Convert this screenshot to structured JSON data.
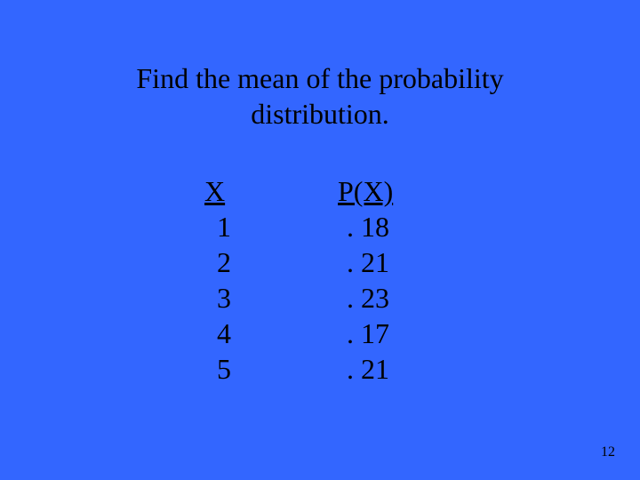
{
  "background_color": "#3366ff",
  "text_color": "#000000",
  "font_family": "Times New Roman",
  "title_fontsize": 32,
  "table_fontsize": 32,
  "title": {
    "line1": "Find the mean of the probability",
    "line2": "distribution."
  },
  "table": {
    "header": {
      "x": "X",
      "px": "P(X)"
    },
    "rows": [
      {
        "x": "1",
        "px": ". 18"
      },
      {
        "x": "2",
        "px": ". 21"
      },
      {
        "x": "3",
        "px": ". 23"
      },
      {
        "x": "4",
        "px": ". 17"
      },
      {
        "x": "5",
        "px": ". 21"
      }
    ]
  },
  "page_number": "12"
}
